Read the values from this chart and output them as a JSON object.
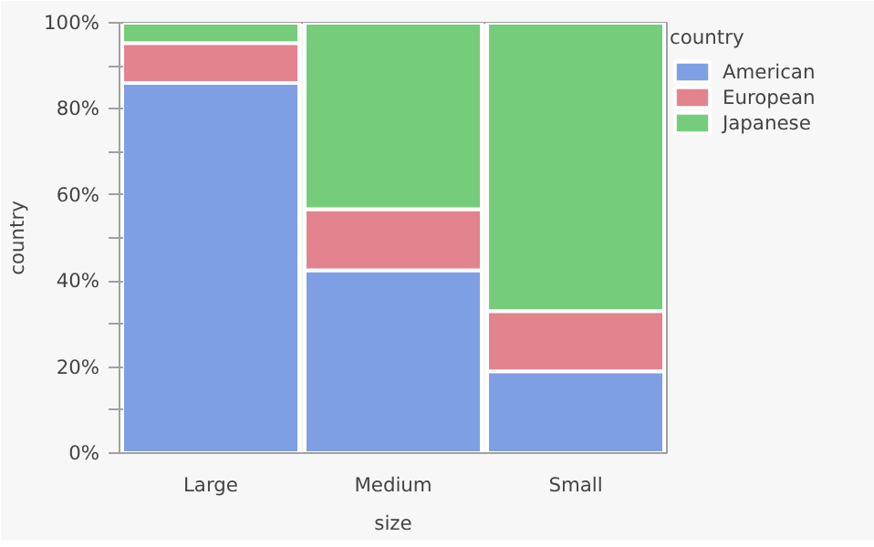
{
  "chart_data": {
    "type": "bar",
    "stacked": true,
    "xlabel": "size",
    "ylabel": "country",
    "legend_title": "country",
    "legend": "right",
    "grid": false,
    "categories": [
      "Large",
      "Medium",
      "Small"
    ],
    "series": [
      {
        "name": "American",
        "color": "#7f9fe5",
        "values": [
          86,
          42.5,
          19
        ]
      },
      {
        "name": "European",
        "color": "#e3838e",
        "values": [
          9.3,
          14.2,
          14
        ]
      },
      {
        "name": "Japanese",
        "color": "#75cd7c",
        "values": [
          4.7,
          43.3,
          67
        ]
      }
    ],
    "ylim": [
      0,
      100
    ],
    "yticks": [
      {
        "value": 0,
        "label": "0%"
      },
      {
        "value": 10,
        "label": null
      },
      {
        "value": 20,
        "label": "20%"
      },
      {
        "value": 30,
        "label": null
      },
      {
        "value": 40,
        "label": "40%"
      },
      {
        "value": 50,
        "label": null
      },
      {
        "value": 60,
        "label": "60%"
      },
      {
        "value": 70,
        "label": null
      },
      {
        "value": 80,
        "label": "80%"
      },
      {
        "value": 90,
        "label": null
      },
      {
        "value": 100,
        "label": "100%"
      }
    ]
  }
}
